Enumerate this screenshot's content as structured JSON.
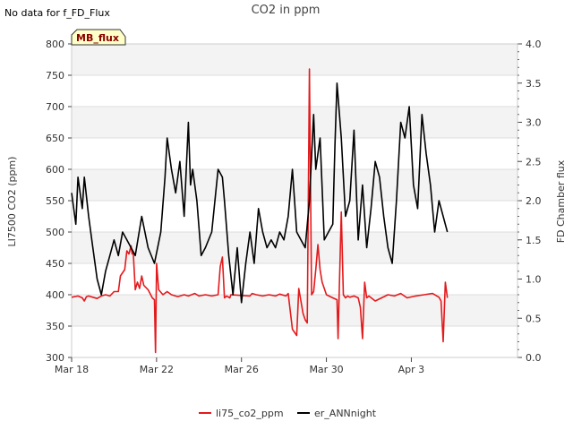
{
  "chart_data": {
    "type": "line",
    "title": "CO2 in ppm",
    "note": "No data for f_FD_Flux",
    "badge": "MB_flux",
    "xlabel": "",
    "ylabel": "LI7500 CO2 (ppm)",
    "y2label": "FD Chamber flux",
    "xlim": [
      0,
      21
    ],
    "ylim": [
      300,
      800
    ],
    "y2lim": [
      0.0,
      4.0
    ],
    "x_ticks": [
      {
        "value": 0,
        "label": "Mar 18"
      },
      {
        "value": 4,
        "label": "Mar 22"
      },
      {
        "value": 8,
        "label": "Mar 26"
      },
      {
        "value": 12,
        "label": "Mar 30"
      },
      {
        "value": 16,
        "label": "Apr 3"
      }
    ],
    "y_ticks": [
      {
        "value": 300,
        "label": "300"
      },
      {
        "value": 350,
        "label": "350"
      },
      {
        "value": 400,
        "label": "400"
      },
      {
        "value": 450,
        "label": "450"
      },
      {
        "value": 500,
        "label": "500"
      },
      {
        "value": 550,
        "label": "550"
      },
      {
        "value": 600,
        "label": "600"
      },
      {
        "value": 650,
        "label": "650"
      },
      {
        "value": 700,
        "label": "700"
      },
      {
        "value": 750,
        "label": "750"
      },
      {
        "value": 800,
        "label": "800"
      }
    ],
    "y2_ticks": [
      {
        "value": 0.0,
        "label": "0.0"
      },
      {
        "value": 0.5,
        "label": "0.5"
      },
      {
        "value": 1.0,
        "label": "1.0"
      },
      {
        "value": 1.5,
        "label": "1.5"
      },
      {
        "value": 2.0,
        "label": "2.0"
      },
      {
        "value": 2.5,
        "label": "2.5"
      },
      {
        "value": 3.0,
        "label": "3.0"
      },
      {
        "value": 3.5,
        "label": "3.5"
      },
      {
        "value": 4.0,
        "label": "4.0"
      }
    ],
    "legend_position": "bottom-center",
    "series": [
      {
        "name": "li75_co2_ppm",
        "axis": "left",
        "color": "#e31a1c",
        "x": [
          0.0,
          0.3,
          0.5,
          0.6,
          0.7,
          0.8,
          1.0,
          1.2,
          1.4,
          1.6,
          1.8,
          2.0,
          2.2,
          2.3,
          2.5,
          2.6,
          2.7,
          2.8,
          2.85,
          2.9,
          3.0,
          3.1,
          3.2,
          3.3,
          3.4,
          3.6,
          3.8,
          3.9,
          3.95,
          4.0,
          4.1,
          4.3,
          4.5,
          4.7,
          5.0,
          5.3,
          5.5,
          5.8,
          6.0,
          6.3,
          6.6,
          6.9,
          7.0,
          7.1,
          7.2,
          7.3,
          7.45,
          7.5,
          8.4,
          8.5,
          8.7,
          9.0,
          9.3,
          9.6,
          9.8,
          10.1,
          10.2,
          10.4,
          10.6,
          10.7,
          10.9,
          11.0,
          11.1,
          11.2,
          11.3,
          11.4,
          11.5,
          11.6,
          11.7,
          11.8,
          12.0,
          12.3,
          12.5,
          12.55,
          12.6,
          12.7,
          12.8,
          12.9,
          13.0,
          13.1,
          13.3,
          13.5,
          13.6,
          13.7,
          13.8,
          13.9,
          14.0,
          14.3,
          14.6,
          14.9,
          15.2,
          15.5,
          15.8,
          16.2,
          16.6,
          17.0,
          17.3,
          17.4,
          17.5,
          17.6,
          17.7
        ],
        "values": [
          396,
          398,
          395,
          390,
          397,
          398,
          396,
          394,
          398,
          400,
          398,
          405,
          405,
          430,
          440,
          470,
          465,
          478,
          465,
          468,
          408,
          420,
          410,
          430,
          415,
          408,
          395,
          392,
          308,
          450,
          408,
          400,
          405,
          400,
          397,
          400,
          398,
          402,
          398,
          400,
          398,
          400,
          445,
          460,
          395,
          398,
          395,
          400,
          398,
          402,
          400,
          398,
          400,
          398,
          401,
          398,
          402,
          345,
          335,
          410,
          370,
          360,
          355,
          760,
          400,
          405,
          440,
          480,
          440,
          420,
          400,
          395,
          392,
          330,
          400,
          532,
          400,
          395,
          398,
          396,
          398,
          395,
          380,
          330,
          420,
          395,
          398,
          390,
          395,
          400,
          398,
          402,
          395,
          398,
          400,
          402,
          396,
          390,
          325,
          420,
          395
        ]
      },
      {
        "name": "er_ANNnight",
        "axis": "right",
        "color": "#000000",
        "x": [
          0.0,
          0.2,
          0.3,
          0.5,
          0.6,
          0.8,
          1.0,
          1.2,
          1.4,
          1.6,
          1.8,
          2.0,
          2.2,
          2.4,
          2.6,
          2.8,
          3.0,
          3.3,
          3.6,
          3.9,
          4.2,
          4.4,
          4.5,
          4.7,
          4.9,
          5.1,
          5.3,
          5.5,
          5.6,
          5.7,
          5.9,
          6.1,
          6.3,
          6.6,
          6.9,
          7.1,
          7.2,
          7.4,
          7.6,
          7.8,
          8.0,
          8.2,
          8.4,
          8.6,
          8.8,
          9.0,
          9.2,
          9.4,
          9.6,
          9.8,
          10.0,
          10.2,
          10.4,
          10.6,
          10.8,
          11.0,
          11.2,
          11.4,
          11.5,
          11.7,
          11.9,
          12.1,
          12.3,
          12.4,
          12.5,
          12.7,
          12.9,
          13.1,
          13.3,
          13.5,
          13.7,
          13.9,
          14.1,
          14.3,
          14.5,
          14.7,
          14.9,
          15.1,
          15.3,
          15.5,
          15.7,
          15.9,
          16.1,
          16.3,
          16.5,
          16.7,
          16.9,
          17.1,
          17.3,
          17.5,
          17.7
        ],
        "values": [
          2.1,
          1.7,
          2.3,
          1.9,
          2.3,
          1.8,
          1.4,
          1.0,
          0.8,
          1.1,
          1.3,
          1.5,
          1.3,
          1.6,
          1.5,
          1.4,
          1.3,
          1.8,
          1.4,
          1.2,
          1.6,
          2.3,
          2.8,
          2.4,
          2.1,
          2.5,
          1.8,
          3.0,
          2.2,
          2.4,
          2.0,
          1.3,
          1.4,
          1.6,
          2.4,
          2.3,
          2.0,
          1.3,
          0.8,
          1.4,
          0.7,
          1.2,
          1.6,
          1.2,
          1.9,
          1.6,
          1.4,
          1.5,
          1.4,
          1.6,
          1.5,
          1.8,
          2.4,
          1.6,
          1.5,
          1.4,
          2.0,
          3.1,
          2.4,
          2.8,
          1.5,
          1.6,
          1.7,
          2.7,
          3.5,
          2.8,
          1.8,
          2.0,
          2.9,
          1.5,
          2.2,
          1.4,
          1.9,
          2.5,
          2.3,
          1.8,
          1.4,
          1.2,
          2.0,
          3.0,
          2.8,
          3.2,
          2.2,
          1.9,
          3.1,
          2.6,
          2.2,
          1.6,
          2.0,
          1.8,
          1.6
        ]
      }
    ]
  }
}
